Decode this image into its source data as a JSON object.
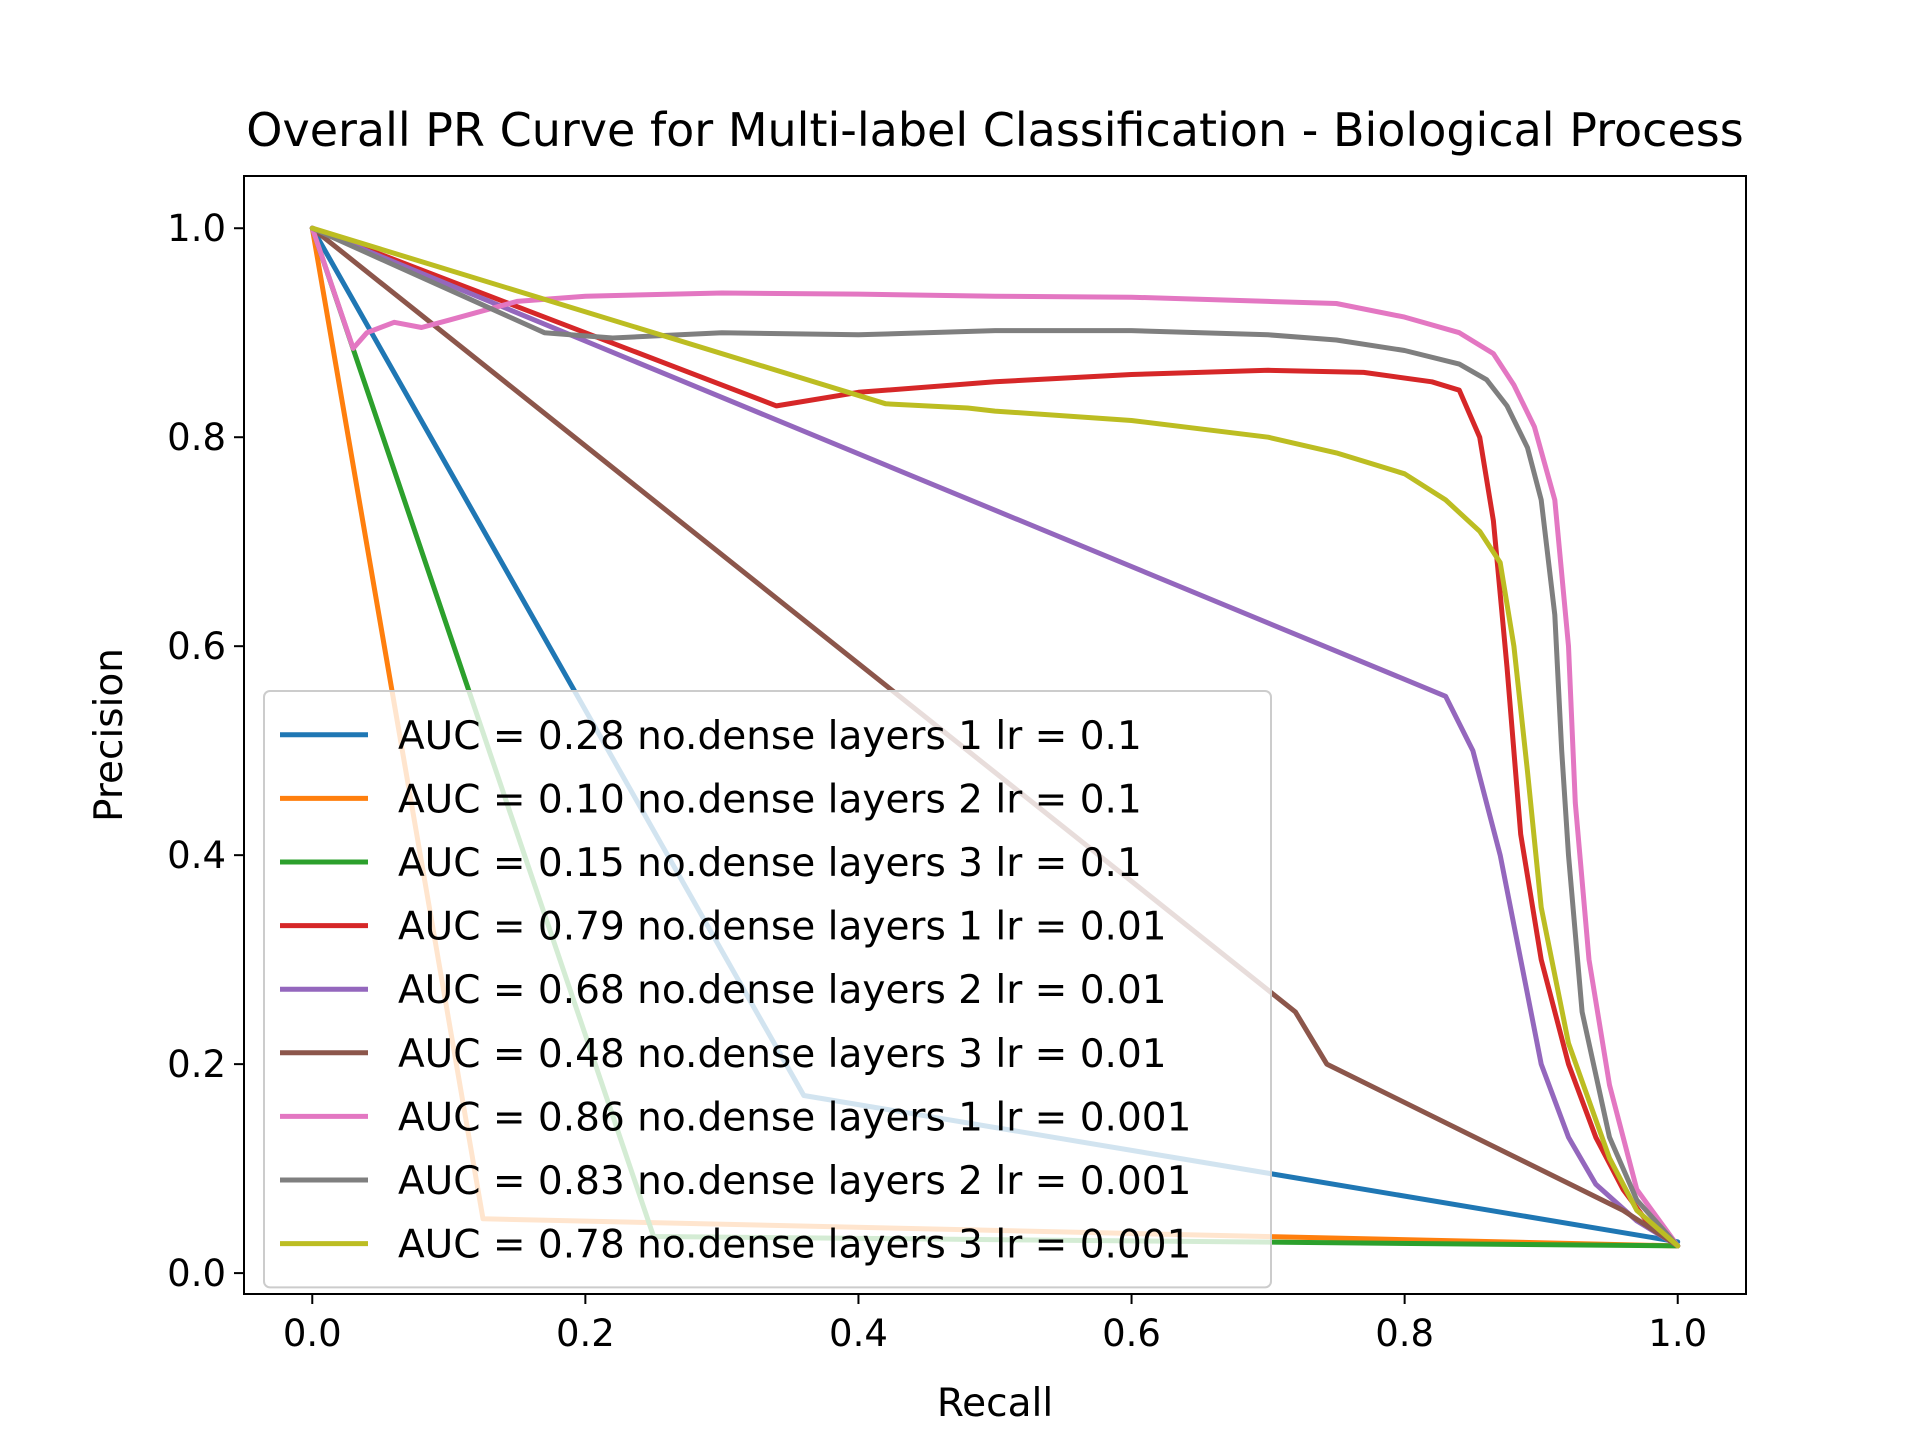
{
  "chart_data": {
    "type": "line",
    "title": "Overall PR Curve for Multi-label Classification - Biological Process",
    "xlabel": "Recall",
    "ylabel": "Precision",
    "xlim": [
      -0.05,
      1.05
    ],
    "ylim": [
      -0.02,
      1.05
    ],
    "xticks": [
      0.0,
      0.2,
      0.4,
      0.6,
      0.8,
      1.0
    ],
    "xtick_labels": [
      "0.0",
      "0.2",
      "0.4",
      "0.6",
      "0.8",
      "1.0"
    ],
    "yticks": [
      0.0,
      0.2,
      0.4,
      0.6,
      0.8,
      1.0
    ],
    "ytick_labels": [
      "0.0",
      "0.2",
      "0.4",
      "0.6",
      "0.8",
      "1.0"
    ],
    "grid": false,
    "legend_position": "lower-left",
    "series": [
      {
        "name": "AUC = 0.28 no.dense layers 1 lr = 0.1",
        "color": "#1f77b4",
        "points": [
          [
            0,
            1.0
          ],
          [
            0.36,
            0.17
          ],
          [
            1.0,
            0.03
          ]
        ]
      },
      {
        "name": "AUC = 0.10 no.dense layers 2 lr = 0.1",
        "color": "#ff7f0e",
        "points": [
          [
            0,
            1.0
          ],
          [
            0.125,
            0.052
          ],
          [
            1.0,
            0.026
          ]
        ]
      },
      {
        "name": "AUC = 0.15 no.dense layers 3 lr = 0.1",
        "color": "#2ca02c",
        "points": [
          [
            0,
            1.0
          ],
          [
            0.25,
            0.035
          ],
          [
            1.0,
            0.026
          ]
        ]
      },
      {
        "name": "AUC = 0.79 no.dense layers 1 lr = 0.01",
        "color": "#d62728",
        "points": [
          [
            0,
            1.0
          ],
          [
            0.34,
            0.83
          ],
          [
            0.4,
            0.843
          ],
          [
            0.5,
            0.853
          ],
          [
            0.6,
            0.86
          ],
          [
            0.7,
            0.864
          ],
          [
            0.77,
            0.862
          ],
          [
            0.82,
            0.853
          ],
          [
            0.84,
            0.845
          ],
          [
            0.855,
            0.8
          ],
          [
            0.865,
            0.72
          ],
          [
            0.875,
            0.58
          ],
          [
            0.885,
            0.42
          ],
          [
            0.9,
            0.3
          ],
          [
            0.92,
            0.2
          ],
          [
            0.94,
            0.13
          ],
          [
            0.96,
            0.08
          ],
          [
            0.98,
            0.045
          ],
          [
            1.0,
            0.026
          ]
        ]
      },
      {
        "name": "AUC = 0.68 no.dense layers 2 lr = 0.01",
        "color": "#9467bd",
        "points": [
          [
            0,
            1.0
          ],
          [
            0.83,
            0.552
          ],
          [
            0.85,
            0.5
          ],
          [
            0.87,
            0.4
          ],
          [
            0.885,
            0.3
          ],
          [
            0.9,
            0.2
          ],
          [
            0.92,
            0.13
          ],
          [
            0.94,
            0.085
          ],
          [
            0.97,
            0.05
          ],
          [
            1.0,
            0.026
          ]
        ]
      },
      {
        "name": "AUC = 0.48 no.dense layers 3 lr = 0.01",
        "color": "#8c564b",
        "points": [
          [
            0,
            1.0
          ],
          [
            0.72,
            0.25
          ],
          [
            0.743,
            0.2
          ],
          [
            0.96,
            0.06
          ],
          [
            1.0,
            0.026
          ]
        ]
      },
      {
        "name": "AUC = 0.86 no.dense layers 1 lr = 0.001",
        "color": "#e377c2",
        "points": [
          [
            0,
            1.0
          ],
          [
            0.03,
            0.885
          ],
          [
            0.04,
            0.9
          ],
          [
            0.06,
            0.91
          ],
          [
            0.08,
            0.905
          ],
          [
            0.1,
            0.912
          ],
          [
            0.15,
            0.93
          ],
          [
            0.2,
            0.935
          ],
          [
            0.3,
            0.938
          ],
          [
            0.4,
            0.937
          ],
          [
            0.5,
            0.935
          ],
          [
            0.6,
            0.934
          ],
          [
            0.7,
            0.93
          ],
          [
            0.75,
            0.928
          ],
          [
            0.8,
            0.915
          ],
          [
            0.84,
            0.9
          ],
          [
            0.865,
            0.88
          ],
          [
            0.88,
            0.85
          ],
          [
            0.895,
            0.81
          ],
          [
            0.91,
            0.74
          ],
          [
            0.92,
            0.6
          ],
          [
            0.925,
            0.45
          ],
          [
            0.935,
            0.3
          ],
          [
            0.95,
            0.18
          ],
          [
            0.97,
            0.08
          ],
          [
            1.0,
            0.026
          ]
        ]
      },
      {
        "name": "AUC = 0.83 no.dense layers 2 lr = 0.001",
        "color": "#7f7f7f",
        "points": [
          [
            0,
            1.0
          ],
          [
            0.17,
            0.9
          ],
          [
            0.22,
            0.895
          ],
          [
            0.3,
            0.9
          ],
          [
            0.4,
            0.898
          ],
          [
            0.5,
            0.902
          ],
          [
            0.6,
            0.902
          ],
          [
            0.7,
            0.898
          ],
          [
            0.75,
            0.893
          ],
          [
            0.8,
            0.883
          ],
          [
            0.84,
            0.87
          ],
          [
            0.86,
            0.855
          ],
          [
            0.875,
            0.83
          ],
          [
            0.89,
            0.79
          ],
          [
            0.9,
            0.74
          ],
          [
            0.91,
            0.63
          ],
          [
            0.915,
            0.5
          ],
          [
            0.92,
            0.4
          ],
          [
            0.93,
            0.25
          ],
          [
            0.95,
            0.13
          ],
          [
            0.97,
            0.07
          ],
          [
            1.0,
            0.026
          ]
        ]
      },
      {
        "name": "AUC = 0.78 no.dense layers 3 lr = 0.001",
        "color": "#bcbd22",
        "points": [
          [
            0,
            1.0
          ],
          [
            0.42,
            0.832
          ],
          [
            0.48,
            0.828
          ],
          [
            0.5,
            0.825
          ],
          [
            0.6,
            0.816
          ],
          [
            0.7,
            0.8
          ],
          [
            0.75,
            0.785
          ],
          [
            0.8,
            0.765
          ],
          [
            0.83,
            0.74
          ],
          [
            0.855,
            0.71
          ],
          [
            0.87,
            0.68
          ],
          [
            0.88,
            0.6
          ],
          [
            0.89,
            0.48
          ],
          [
            0.9,
            0.35
          ],
          [
            0.92,
            0.22
          ],
          [
            0.95,
            0.11
          ],
          [
            0.97,
            0.06
          ],
          [
            1.0,
            0.026
          ]
        ]
      }
    ]
  }
}
